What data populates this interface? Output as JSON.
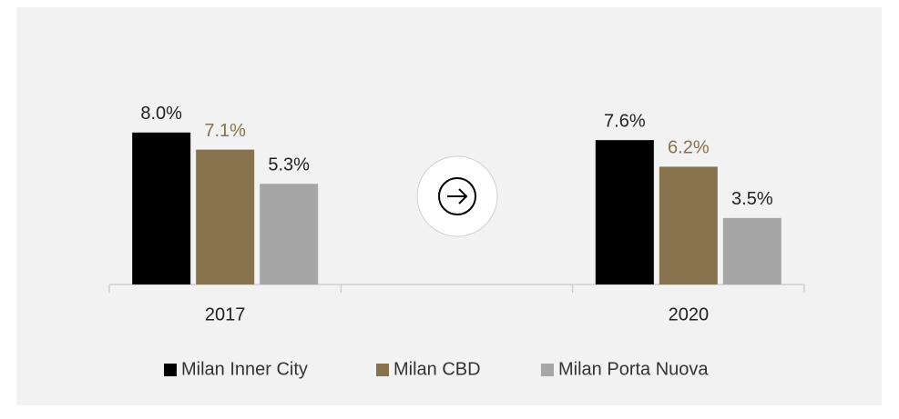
{
  "chart_data": {
    "type": "bar",
    "categories": [
      "2017",
      null,
      "2020"
    ],
    "series": [
      {
        "name": "Milan Inner City",
        "color": "#000000",
        "label_color": "#222222",
        "values": [
          8.0,
          null,
          7.6
        ],
        "value_labels": [
          "8.0%",
          null,
          "7.6%"
        ]
      },
      {
        "name": "Milan CBD",
        "color": "#86724d",
        "label_color": "#86724d",
        "values": [
          7.1,
          null,
          6.2
        ],
        "value_labels": [
          "7.1%",
          null,
          "6.2%"
        ]
      },
      {
        "name": "Milan Porta Nuova",
        "color": "#a6a6a6",
        "label_color": "#222222",
        "values": [
          5.3,
          null,
          3.5
        ],
        "value_labels": [
          "5.3%",
          null,
          "3.5%"
        ]
      }
    ]
  }
}
